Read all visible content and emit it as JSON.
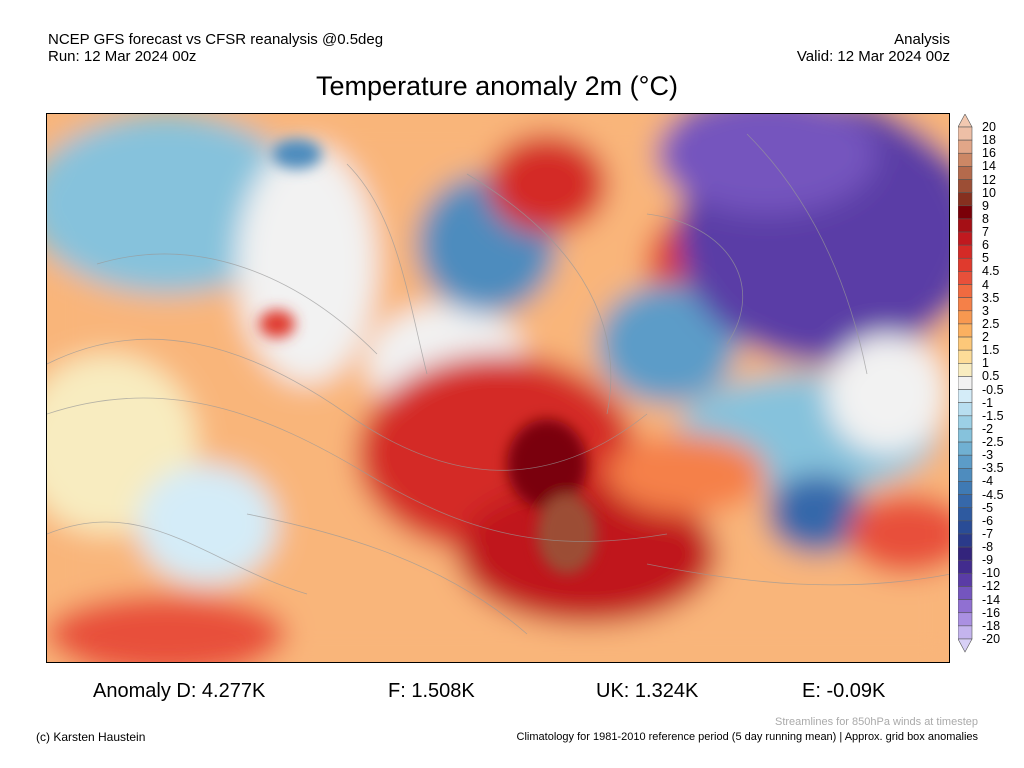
{
  "header": {
    "model_line": "NCEP GFS forecast vs CFSR reanalysis @0.5deg",
    "run_line": "Run: 12 Mar 2024 00z",
    "type_line": "Analysis",
    "valid_line": "Valid: 12 Mar 2024 00z"
  },
  "title": "Temperature anomaly 2m (°C)",
  "colorbar": {
    "labels": [
      "20",
      "18",
      "16",
      "14",
      "12",
      "10",
      "9",
      "8",
      "7",
      "6",
      "5",
      "4.5",
      "4",
      "3.5",
      "3",
      "2.5",
      "2",
      "1.5",
      "1",
      "0.5",
      "-0.5",
      "-1",
      "-1.5",
      "-2",
      "-2.5",
      "-3",
      "-3.5",
      "-4",
      "-4.5",
      "-5",
      "-6",
      "-7",
      "-8",
      "-9",
      "-10",
      "-12",
      "-14",
      "-16",
      "-18",
      "-20"
    ],
    "colors": [
      "#eebfa6",
      "#e2a688",
      "#cc8765",
      "#b46a4c",
      "#9c4e35",
      "#86301f",
      "#7a0008",
      "#a50f15",
      "#c0191f",
      "#d42a26",
      "#e03a2d",
      "#e8503a",
      "#f06a40",
      "#f58048",
      "#f89850",
      "#fbb060",
      "#fdc879",
      "#fddc98",
      "#f8ecc0",
      "#f2f2f2",
      "#d4ecf8",
      "#b8def0",
      "#9cd0e6",
      "#86c2dc",
      "#70b0d2",
      "#5c9cc8",
      "#4e8cbe",
      "#3f7ab4",
      "#3668aa",
      "#2e5aa0",
      "#294c96",
      "#2a3a8a",
      "#33247c",
      "#422c8e",
      "#5a3ca6",
      "#7455be",
      "#9070d2",
      "#aa90e2",
      "#c4b4ee"
    ],
    "top_arrow_color": "#f2c8b0",
    "bottom_arrow_color": "#d8d0f6"
  },
  "anomalies": {
    "d": "Anomaly D: 4.277K",
    "f": "F: 1.508K",
    "uk": "UK: 1.324K",
    "e": "E: -0.09K"
  },
  "footer": {
    "credit": "(c) Karsten Haustein",
    "streamlines_note": "Streamlines for 850hPa winds at timestep",
    "climatology_note": "Climatology for 1981-2010 reference period (5 day running mean) | Approx. grid box anomalies"
  }
}
